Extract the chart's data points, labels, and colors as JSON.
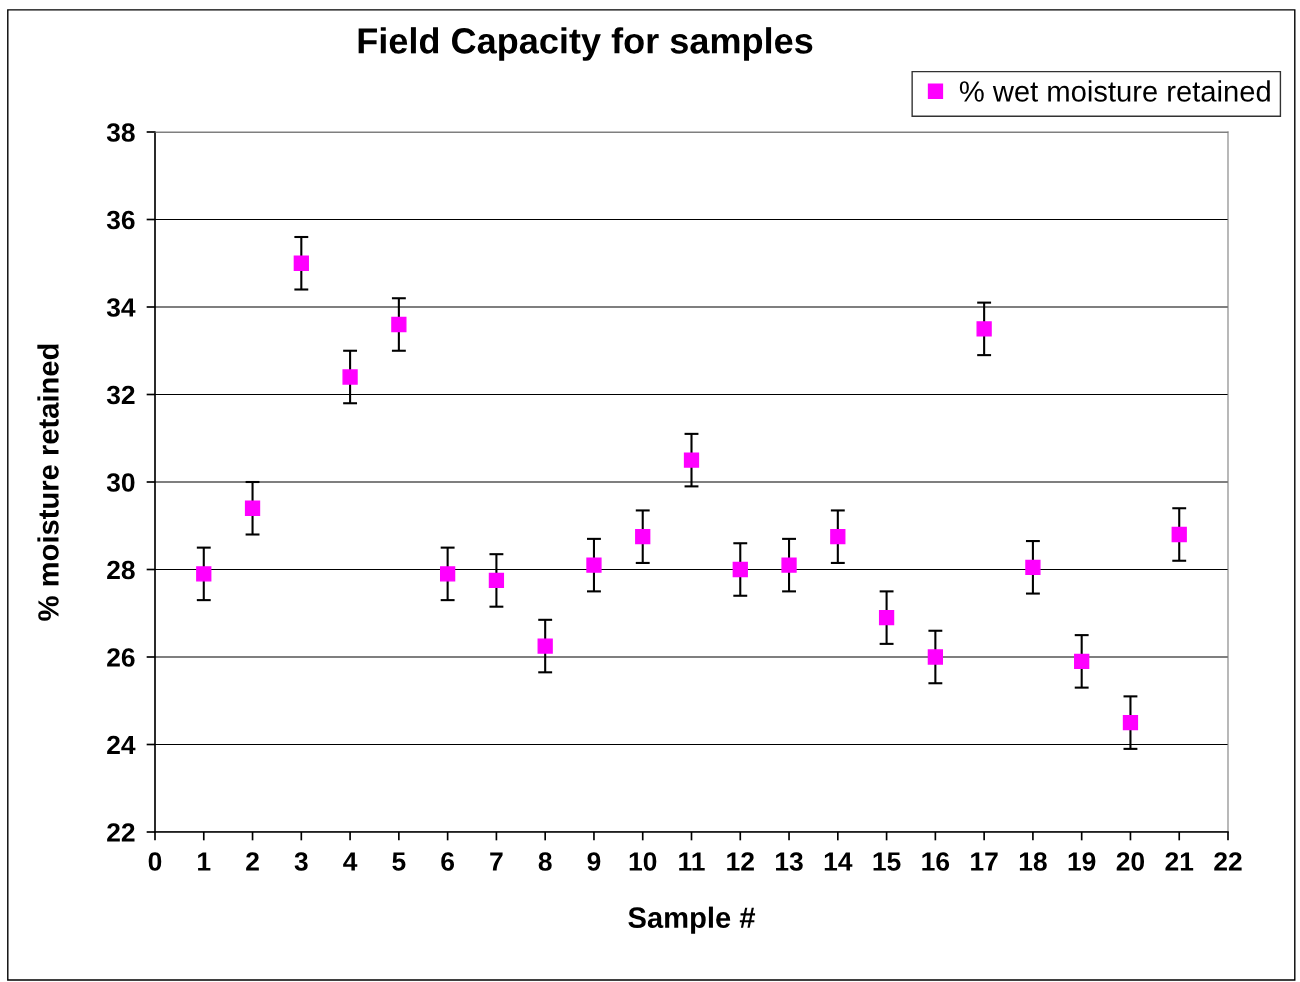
{
  "chart_data": {
    "type": "scatter",
    "title": "Field Capacity for samples",
    "xlabel": "Sample #",
    "ylabel": "% moisture retained",
    "x": [
      1,
      2,
      3,
      4,
      5,
      6,
      7,
      8,
      9,
      10,
      11,
      12,
      13,
      14,
      15,
      16,
      17,
      18,
      19,
      20,
      21
    ],
    "series": [
      {
        "name": "% wet moisture retained",
        "color": "#ff00ff",
        "values": [
          27.9,
          29.4,
          35.0,
          32.4,
          33.6,
          27.9,
          27.75,
          26.25,
          28.1,
          28.75,
          30.5,
          28.0,
          28.1,
          28.75,
          26.9,
          26.0,
          33.5,
          28.05,
          25.9,
          24.5,
          28.8
        ],
        "errors": [
          0.6,
          0.6,
          0.6,
          0.6,
          0.6,
          0.6,
          0.6,
          0.6,
          0.6,
          0.6,
          0.6,
          0.6,
          0.6,
          0.6,
          0.6,
          0.6,
          0.6,
          0.6,
          0.6,
          0.6,
          0.6
        ]
      }
    ],
    "xlim": [
      0,
      22
    ],
    "xticks": [
      0,
      1,
      2,
      3,
      4,
      5,
      6,
      7,
      8,
      9,
      10,
      11,
      12,
      13,
      14,
      15,
      16,
      17,
      18,
      19,
      20,
      21,
      22
    ],
    "ylim": [
      22,
      38
    ],
    "yticks": [
      22,
      24,
      26,
      28,
      30,
      32,
      34,
      36,
      38
    ],
    "grid": "y",
    "legend": "top right",
    "marker": "square"
  }
}
